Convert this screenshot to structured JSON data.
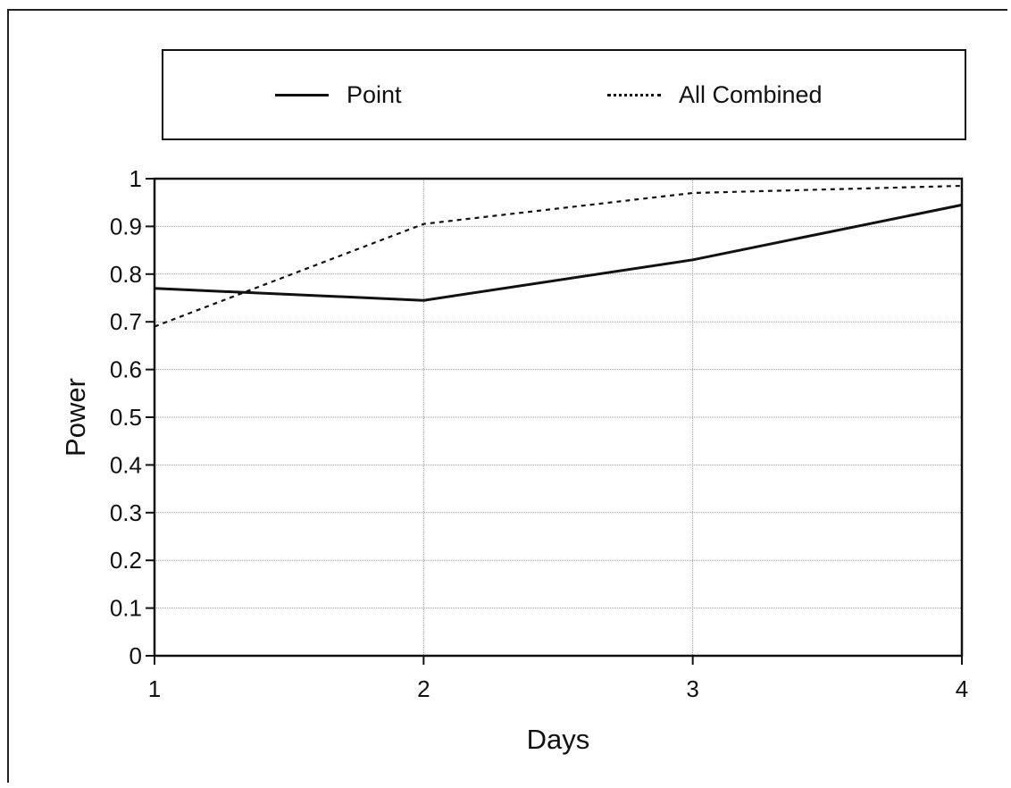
{
  "legend": {
    "items": [
      {
        "label": "Point",
        "style": "solid"
      },
      {
        "label": "All Combined",
        "style": "dotted"
      }
    ]
  },
  "chart_data": {
    "type": "line",
    "xlabel": "Days",
    "ylabel": "Power",
    "x": [
      1,
      2,
      3,
      4
    ],
    "xlim": [
      1,
      4
    ],
    "ylim": [
      0,
      1
    ],
    "x_ticks": [
      "1",
      "2",
      "3",
      "4"
    ],
    "y_ticks": [
      "0",
      "0.1",
      "0.2",
      "0.3",
      "0.4",
      "0.5",
      "0.6",
      "0.7",
      "0.8",
      "0.9",
      "1"
    ],
    "grid": true,
    "legend_position": "top",
    "series": [
      {
        "name": "Point",
        "values": [
          0.77,
          0.745,
          0.83,
          0.945
        ],
        "color": "#111111",
        "dash": "solid"
      },
      {
        "name": "All Combined",
        "values": [
          0.69,
          0.905,
          0.97,
          0.985
        ],
        "color": "#111111",
        "dash": "dotted"
      }
    ]
  }
}
